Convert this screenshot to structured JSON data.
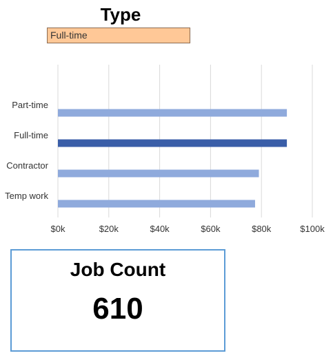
{
  "slicer": {
    "title": "Type",
    "selected": "Full-time"
  },
  "chart_data": {
    "type": "bar",
    "orientation": "horizontal",
    "categories": [
      "Part-time",
      "Full-time",
      "Contractor",
      "Temp work"
    ],
    "values": [
      90000,
      90000,
      79000,
      77500
    ],
    "highlighted": "Full-time",
    "xlim": [
      0,
      100000
    ],
    "xticks": [
      0,
      20000,
      40000,
      60000,
      80000,
      100000
    ],
    "xtick_labels": [
      "$0k",
      "$20k",
      "$40k",
      "$60k",
      "$80k",
      "$100k"
    ],
    "grid": true,
    "colors": {
      "bar": "#8faadc",
      "bar_highlight": "#3a5ea8",
      "grid": "#d9d9d9"
    }
  },
  "kpi": {
    "label": "Job Count",
    "value": "610"
  },
  "colors": {
    "slicer_fill": "#ffc897",
    "kpi_border": "#5b9bd5"
  }
}
